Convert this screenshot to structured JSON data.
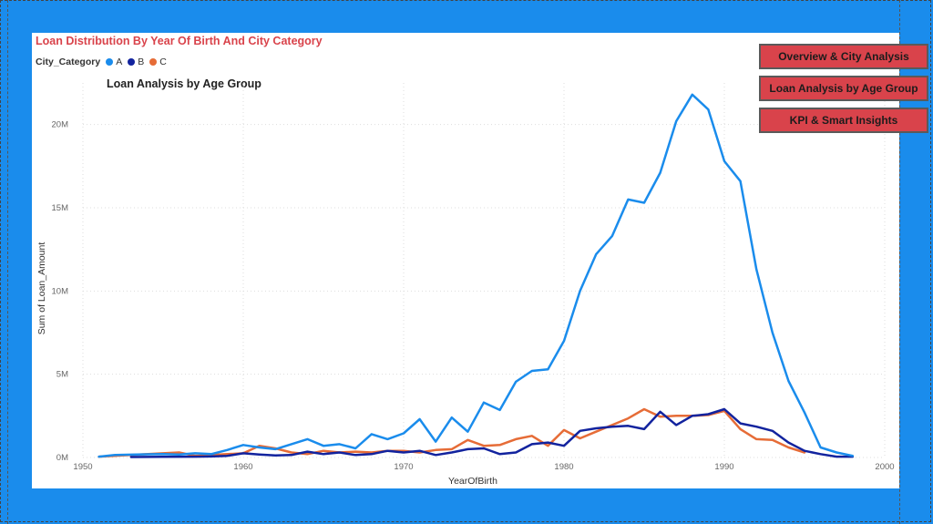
{
  "nav": {
    "buttons": [
      {
        "label": "Overview & City Analysis"
      },
      {
        "label": "Loan Analysis by Age Group"
      },
      {
        "label": "KPI & Smart Insights"
      }
    ]
  },
  "page": {
    "subtitle": "Loan Analysis by Age Group"
  },
  "chart_data": {
    "type": "line",
    "title": "Loan Distribution By Year Of Birth And City Category",
    "xlabel": "YearOfBirth",
    "ylabel": "Sum of Loan_Amount",
    "xlim": [
      1950,
      2000
    ],
    "ylim": [
      0,
      22500000
    ],
    "x_ticks": [
      1950,
      1960,
      1970,
      1980,
      1990,
      2000
    ],
    "x_tick_labels": [
      "1950",
      "1960",
      "1970",
      "1980",
      "1990",
      "2000"
    ],
    "y_ticks": [
      0,
      5000000,
      10000000,
      15000000,
      20000000
    ],
    "y_tick_labels": [
      "0M",
      "5M",
      "10M",
      "15M",
      "20M"
    ],
    "grid": true,
    "legend": {
      "title": "City_Category",
      "placement": "top-left",
      "entries": [
        "A",
        "B",
        "C"
      ]
    },
    "colors": {
      "A": "#1a8cec",
      "B": "#12239e",
      "C": "#e66c37"
    },
    "series": [
      {
        "name": "A",
        "x": [
          1951,
          1952,
          1953,
          1954,
          1955,
          1956,
          1957,
          1958,
          1959,
          1960,
          1961,
          1962,
          1963,
          1964,
          1965,
          1966,
          1967,
          1968,
          1969,
          1970,
          1971,
          1972,
          1973,
          1974,
          1975,
          1976,
          1977,
          1978,
          1979,
          1980,
          1981,
          1982,
          1983,
          1984,
          1985,
          1986,
          1987,
          1988,
          1989,
          1990,
          1991,
          1992,
          1993,
          1994,
          1995,
          1996,
          1997,
          1998
        ],
        "values": [
          50000,
          150000,
          170000,
          190000,
          200000,
          180000,
          250000,
          200000,
          450000,
          750000,
          600000,
          500000,
          800000,
          1100000,
          700000,
          800000,
          550000,
          1400000,
          1100000,
          1450000,
          2300000,
          950000,
          2400000,
          1550000,
          3300000,
          2850000,
          4550000,
          5200000,
          5300000,
          7000000,
          10000000,
          12200000,
          13300000,
          15500000,
          15300000,
          17100000,
          20200000,
          21800000,
          20900000,
          17800000,
          16600000,
          11300000,
          7500000,
          4600000,
          2700000,
          600000,
          300000,
          100000
        ]
      },
      {
        "name": "B",
        "x": [
          1953,
          1955,
          1957,
          1958,
          1959,
          1960,
          1961,
          1962,
          1963,
          1964,
          1965,
          1966,
          1967,
          1968,
          1969,
          1970,
          1971,
          1972,
          1973,
          1974,
          1975,
          1976,
          1977,
          1978,
          1979,
          1980,
          1981,
          1982,
          1983,
          1984,
          1985,
          1986,
          1987,
          1988,
          1989,
          1990,
          1991,
          1992,
          1993,
          1994,
          1995,
          1996,
          1997,
          1998
        ],
        "values": [
          30000,
          40000,
          50000,
          60000,
          100000,
          250000,
          180000,
          120000,
          150000,
          350000,
          200000,
          300000,
          150000,
          200000,
          400000,
          300000,
          400000,
          150000,
          300000,
          500000,
          550000,
          200000,
          300000,
          800000,
          900000,
          700000,
          1600000,
          1750000,
          1850000,
          1900000,
          1700000,
          2750000,
          1950000,
          2500000,
          2600000,
          2900000,
          2050000,
          1850000,
          1600000,
          900000,
          400000,
          200000,
          50000,
          50000
        ]
      },
      {
        "name": "C",
        "x": [
          1951,
          1953,
          1955,
          1956,
          1957,
          1958,
          1959,
          1960,
          1961,
          1962,
          1963,
          1964,
          1965,
          1966,
          1967,
          1968,
          1969,
          1970,
          1971,
          1972,
          1973,
          1974,
          1975,
          1976,
          1977,
          1978,
          1979,
          1980,
          1981,
          1982,
          1983,
          1984,
          1985,
          1986,
          1987,
          1988,
          1989,
          1990,
          1991,
          1992,
          1993,
          1994,
          1995
        ],
        "values": [
          50000,
          150000,
          250000,
          300000,
          100000,
          150000,
          200000,
          250000,
          700000,
          550000,
          300000,
          200000,
          400000,
          300000,
          350000,
          300000,
          400000,
          400000,
          300000,
          450000,
          500000,
          1050000,
          700000,
          750000,
          1100000,
          1300000,
          700000,
          1650000,
          1150000,
          1550000,
          1950000,
          2350000,
          2900000,
          2450000,
          2500000,
          2500000,
          2550000,
          2800000,
          1700000,
          1100000,
          1050000,
          600000,
          300000
        ]
      }
    ]
  }
}
